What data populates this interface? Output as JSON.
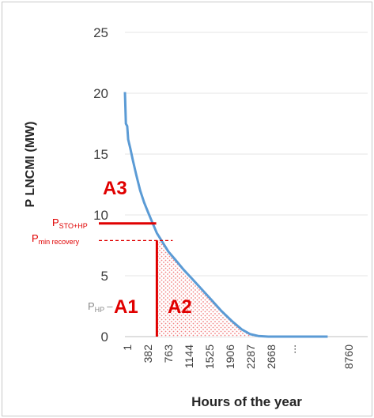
{
  "chart_data": {
    "type": "area",
    "title": "",
    "xlabel": "Hours of the year",
    "ylabel": "P LNCMI (MW)",
    "ylim": [
      0,
      25
    ],
    "yticks": [
      "0",
      "5",
      "10",
      "15",
      "20",
      "25"
    ],
    "xticks": [
      "1",
      "382",
      "763",
      "1144",
      "1525",
      "1906",
      "2287",
      "2668",
      "...",
      "8760"
    ],
    "grid": "horizontal",
    "legend": "none",
    "line_color": "#5b9bd5",
    "annotation_color": "#e00000",
    "series": [
      {
        "x": [
          1,
          15,
          35,
          50,
          80,
          120,
          170,
          230,
          290,
          350,
          410,
          480,
          560,
          650,
          760,
          880,
          1000,
          1150,
          1300,
          1450,
          1600,
          1750,
          1880,
          2000,
          2150,
          2300,
          2500,
          3000,
          3500,
          4000,
          4500,
          5000
        ],
        "y": [
          20.1,
          17.5,
          17.3,
          16.2,
          15.5,
          14.5,
          13.3,
          12.0,
          11.0,
          10.2,
          9.4,
          8.5,
          7.8,
          7.0,
          6.3,
          5.5,
          4.8,
          3.9,
          3.0,
          2.1,
          1.3,
          0.6,
          0.2,
          0.05,
          0,
          0,
          0,
          0,
          0,
          0,
          0,
          0
        ]
      }
    ],
    "annotations": {
      "a1": "A1",
      "a2": "A2",
      "a3": "A3",
      "p_sto_main": "P",
      "p_sto_sub": "STO+HP",
      "p_min_main": "P",
      "p_min_sub": "min recovery",
      "p_hp_main": "P",
      "p_hp_sub": "HP",
      "p_hp_dash": "–"
    },
    "markers": {
      "p_sto_hp": 9.3,
      "p_min_recovery": 7.9,
      "x_split": 480
    }
  }
}
